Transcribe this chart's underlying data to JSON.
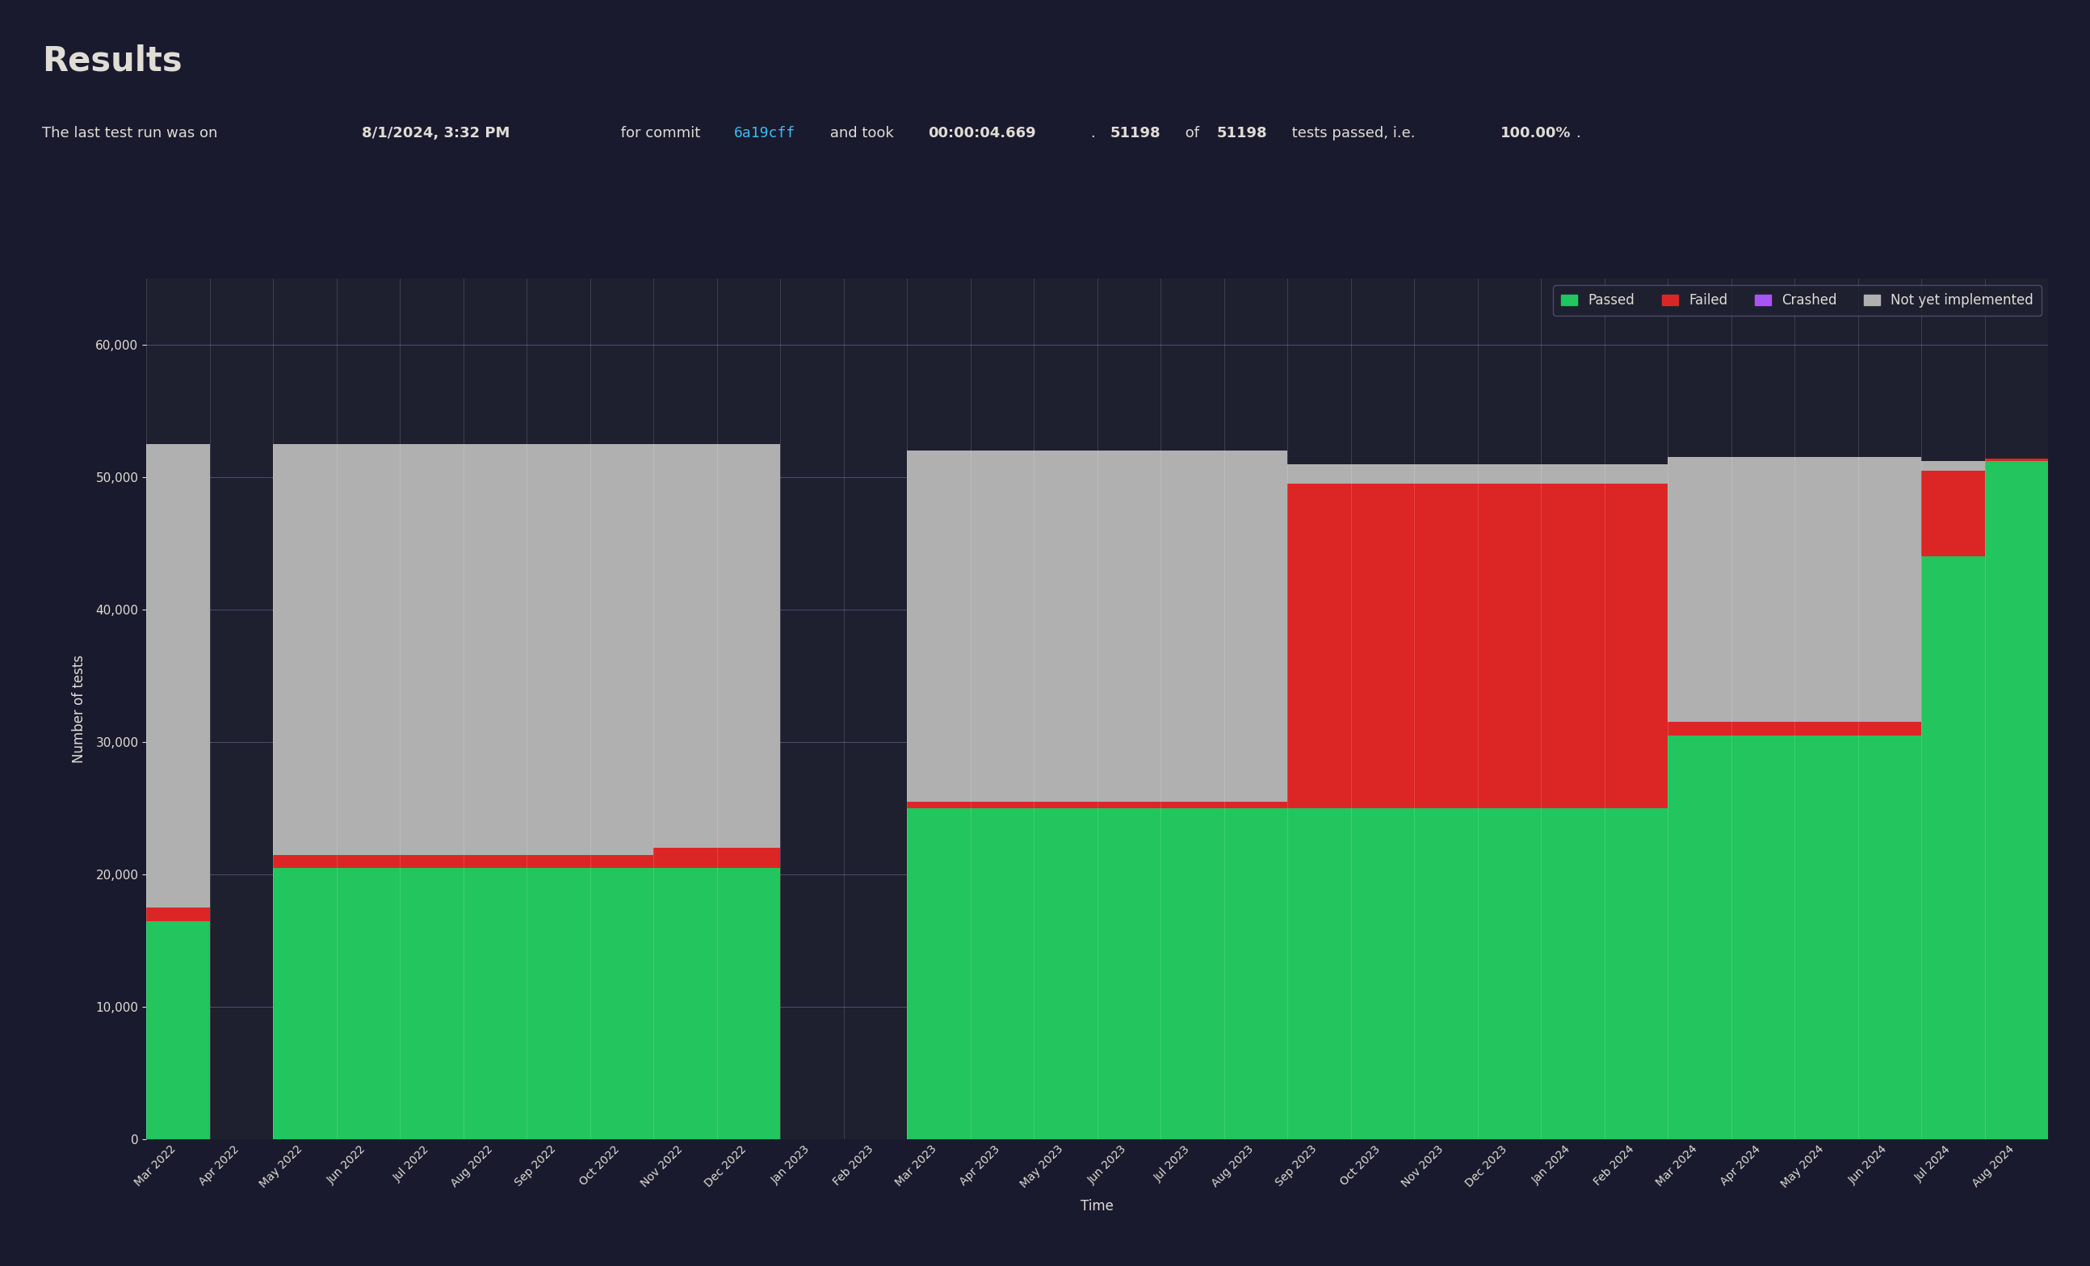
{
  "title": "Results",
  "ylabel": "Number of tests",
  "xlabel": "Time",
  "bg_outer": "#1a1a2e",
  "bg_chart": "#1e2030",
  "text_color": "#e0ddd5",
  "colors": {
    "passed": "#22c55e",
    "failed": "#dc2626",
    "crashed": "#a855f7",
    "not_impl": "#b0b0b0"
  },
  "legend_labels": [
    "Passed",
    "Failed",
    "Crashed",
    "Not yet implemented"
  ],
  "legend_colors": [
    "#22c55e",
    "#dc2626",
    "#a855f7",
    "#b0b0b0"
  ],
  "x_labels": [
    "Mar 2022",
    "Apr 2022",
    "May 2022",
    "Jun 2022",
    "Jul 2022",
    "Aug 2022",
    "Sep 2022",
    "Oct 2022",
    "Nov 2022",
    "Dec 2022",
    "Jan 2023",
    "Feb 2023",
    "Mar 2023",
    "Apr 2023",
    "May 2023",
    "Jun 2023",
    "Jul 2023",
    "Aug 2023",
    "Sep 2023",
    "Oct 2023",
    "Nov 2023",
    "Dec 2023",
    "Jan 2024",
    "Feb 2024",
    "Mar 2024",
    "Apr 2024",
    "May 2024",
    "Jun 2024",
    "Jul 2024",
    "Aug 2024"
  ],
  "passed": [
    16500,
    0,
    20500,
    20500,
    20500,
    20500,
    20500,
    20500,
    20500,
    20500,
    0,
    0,
    25000,
    25000,
    25000,
    25000,
    25000,
    25000,
    25000,
    25000,
    25000,
    25000,
    25000,
    25000,
    30500,
    30500,
    30500,
    30500,
    44000,
    51198
  ],
  "failed": [
    1000,
    0,
    1000,
    1000,
    1000,
    1000,
    1000,
    1000,
    1500,
    1500,
    0,
    0,
    500,
    500,
    500,
    500,
    500,
    500,
    24500,
    24500,
    24500,
    24500,
    24500,
    24500,
    1000,
    1000,
    1000,
    1000,
    6500,
    200
  ],
  "crashed": [
    0,
    0,
    0,
    0,
    0,
    0,
    0,
    0,
    0,
    0,
    0,
    0,
    0,
    0,
    0,
    0,
    0,
    0,
    0,
    0,
    0,
    0,
    0,
    0,
    0,
    0,
    0,
    0,
    0,
    0
  ],
  "not_impl": [
    35000,
    0,
    31000,
    31000,
    31000,
    31000,
    31000,
    31000,
    30500,
    30500,
    0,
    0,
    26500,
    26500,
    26500,
    26500,
    26500,
    26500,
    1500,
    1500,
    1500,
    1500,
    1500,
    1500,
    20000,
    20000,
    20000,
    20000,
    700,
    0
  ],
  "ylim": [
    0,
    65000
  ],
  "yticks": [
    0,
    10000,
    20000,
    30000,
    40000,
    50000,
    60000
  ]
}
